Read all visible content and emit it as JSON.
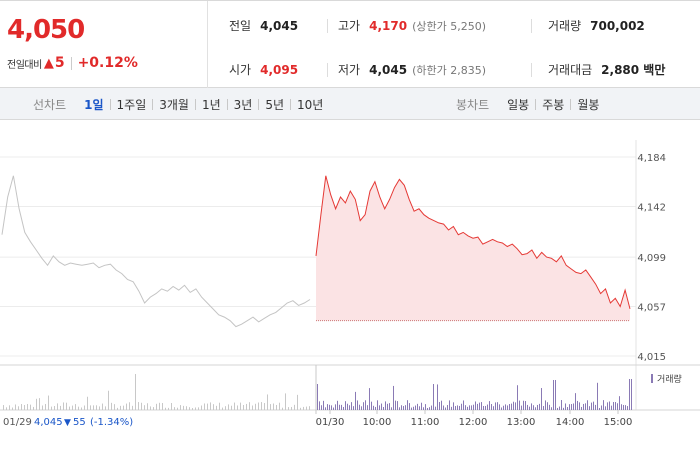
{
  "quote": {
    "price": "4,050",
    "change_label": "전일대비",
    "change_arrow": "▲",
    "change_value": "5",
    "change_pct": "+0.12%"
  },
  "stats": {
    "prev_close": {
      "label": "전일",
      "value": "4,045"
    },
    "high": {
      "label": "고가",
      "value": "4,170",
      "sub": "(상한가 5,250)"
    },
    "volume": {
      "label": "거래량",
      "value": "700,002"
    },
    "open": {
      "label": "시가",
      "value": "4,095"
    },
    "low": {
      "label": "저가",
      "value": "4,045",
      "sub": "(하한가 2,835)"
    },
    "trade_amount": {
      "label": "거래대금",
      "value": "2,880 백만"
    }
  },
  "line_tabs": {
    "title": "선차트",
    "items": [
      "1일",
      "1주일",
      "3개월",
      "1년",
      "3년",
      "5년",
      "10년"
    ],
    "active": "1일"
  },
  "candle_tabs": {
    "title": "봉차트",
    "items": [
      "일봉",
      "주봉",
      "월봉"
    ]
  },
  "colors": {
    "up": "#e12a2a",
    "down": "#1a56c8",
    "today_line": "#e53935",
    "today_fill": "#fbe3e4",
    "prev_line": "#c4c4c4",
    "volume_bar": "#8a7ab5",
    "prev_volume_bar": "#c8c8c8",
    "active_tab": "#1a56c8"
  },
  "chart_data": {
    "type": "line",
    "y_ticks": [
      "4,184",
      "4,142",
      "4,099",
      "4,057",
      "4,015"
    ],
    "ylim": [
      4015,
      4184
    ],
    "prev_reference": 4045,
    "volume_legend": "거래량",
    "prev_day": {
      "date": "01/29",
      "close": "4,045",
      "change_arrow": "▼",
      "change": "55",
      "change_pct": "(-1.34%)",
      "prices": [
        4118,
        4150,
        4168,
        4140,
        4120,
        4112,
        4105,
        4098,
        4092,
        4100,
        4095,
        4092,
        4094,
        4093,
        4092,
        4093,
        4094,
        4090,
        4092,
        4093,
        4088,
        4085,
        4080,
        4078,
        4070,
        4060,
        4065,
        4068,
        4072,
        4070,
        4074,
        4071,
        4075,
        4069,
        4072,
        4065,
        4060,
        4055,
        4050,
        4048,
        4045,
        4040,
        4042,
        4045,
        4048,
        4044,
        4047,
        4050,
        4052,
        4056,
        4060,
        4062,
        4058,
        4060,
        4063
      ]
    },
    "today": {
      "x_labels": [
        "01/30",
        "10:00",
        "11:00",
        "12:00",
        "13:00",
        "14:00",
        "15:00"
      ],
      "prices": [
        4100,
        4135,
        4168,
        4152,
        4140,
        4150,
        4145,
        4155,
        4148,
        4130,
        4135,
        4155,
        4163,
        4150,
        4140,
        4148,
        4158,
        4165,
        4160,
        4148,
        4138,
        4140,
        4135,
        4132,
        4130,
        4128,
        4127,
        4122,
        4125,
        4118,
        4120,
        4117,
        4115,
        4116,
        4110,
        4112,
        4114,
        4112,
        4111,
        4108,
        4110,
        4106,
        4101,
        4102,
        4105,
        4098,
        4103,
        4099,
        4098,
        4095,
        4100,
        4092,
        4089,
        4086,
        4085,
        4088,
        4082,
        4076,
        4068,
        4072,
        4060,
        4064,
        4057,
        4071,
        4055
      ]
    }
  }
}
